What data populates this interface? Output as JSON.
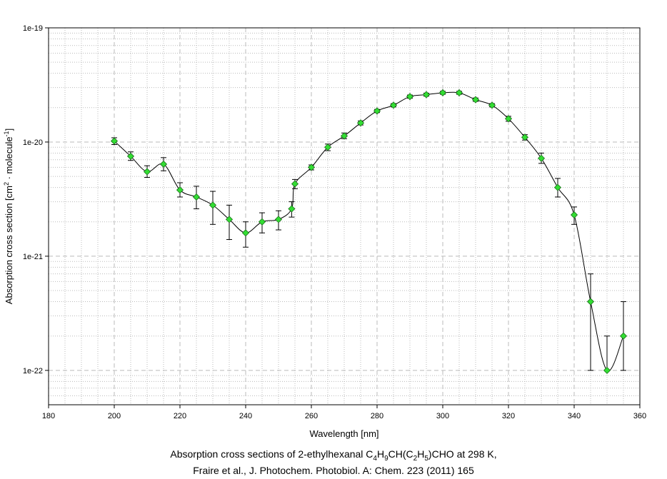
{
  "chart_data": {
    "type": "scatter",
    "xlabel": "Wavelength [nm]",
    "ylabel": {
      "main": "Absorption cross section [cm",
      "sup1": "2",
      "mid": " · molecule",
      "sup2": "-1",
      "end": "]"
    },
    "xlim": [
      180,
      360
    ],
    "ylim": [
      5e-23,
      1e-19
    ],
    "yscale": "log",
    "grid": true,
    "x_ticks": [
      180,
      200,
      220,
      240,
      260,
      280,
      300,
      320,
      340,
      360
    ],
    "y_ticks": [
      {
        "value": 1e-22,
        "label": "1e-22"
      },
      {
        "value": 1e-21,
        "label": "1e-21"
      },
      {
        "value": 1e-20,
        "label": "1e-20"
      },
      {
        "value": 1e-19,
        "label": "1e-19"
      }
    ],
    "series": [
      {
        "x": [
          200,
          205,
          210,
          215,
          220,
          225,
          230,
          235,
          240,
          245,
          250,
          254,
          255,
          260,
          265,
          270,
          275,
          280,
          285,
          290,
          295,
          300,
          305,
          310,
          315,
          320,
          325,
          330,
          335,
          340,
          345,
          350,
          355
        ],
        "y": [
          1.02e-20,
          7.5e-21,
          5.5e-21,
          6.4e-21,
          3.8e-21,
          3.3e-21,
          2.8e-21,
          2.1e-21,
          1.6e-21,
          2e-21,
          2.1e-21,
          2.6e-21,
          4.3e-21,
          6e-21,
          9e-21,
          1.13e-20,
          1.47e-20,
          1.87e-20,
          2.1e-20,
          2.5e-20,
          2.6e-20,
          2.7e-20,
          2.7e-20,
          2.35e-20,
          2.1e-20,
          1.6e-20,
          1.1e-20,
          7.2e-21,
          4e-21,
          2.3e-21,
          4e-22,
          1e-22,
          2e-22
        ],
        "err_low": [
          9.5e-21,
          6.9e-21,
          4.9e-21,
          5.6e-21,
          3.3e-21,
          2.6e-21,
          1.9e-21,
          1.4e-21,
          1.2e-21,
          1.6e-21,
          1.7e-21,
          2.2e-21,
          3.9e-21,
          5.7e-21,
          8.4e-21,
          1.07e-20,
          1.41e-20,
          1.81e-20,
          2.03e-20,
          2.42e-20,
          2.52e-20,
          2.62e-20,
          2.62e-20,
          2.27e-20,
          2.03e-20,
          1.52e-20,
          1.04e-20,
          6.5e-21,
          3.3e-21,
          1.9e-21,
          1e-22,
          1e-22,
          1e-22
        ],
        "err_high": [
          1.09e-20,
          8.2e-21,
          6.2e-21,
          7.3e-21,
          4.4e-21,
          4.1e-21,
          3.7e-21,
          2.8e-21,
          2e-21,
          2.4e-21,
          2.5e-21,
          3e-21,
          4.7e-21,
          6.3e-21,
          9.6e-21,
          1.2e-20,
          1.53e-20,
          1.93e-20,
          2.17e-20,
          2.58e-20,
          2.68e-20,
          2.78e-20,
          2.78e-20,
          2.43e-20,
          2.17e-20,
          1.68e-20,
          1.16e-20,
          8e-21,
          4.8e-21,
          2.7e-21,
          7e-22,
          2e-22,
          4e-22
        ]
      }
    ],
    "colors": {
      "marker_fill": "#33dd33",
      "marker_edge": "#1a6e1a",
      "line": "#000000",
      "grid": "#bbbbbb"
    },
    "caption": {
      "line1_a": "Absorption cross sections of 2-ethylhexanal C",
      "s1": "4",
      "line1_b": "H",
      "s2": "9",
      "line1_c": "CH(C",
      "s3": "2",
      "line1_d": "H",
      "s4": "5",
      "line1_e": ")CHO at 298 K,",
      "line2": "Fraire et al., J. Photochem. Photobiol. A: Chem. 223 (2011) 165"
    }
  }
}
